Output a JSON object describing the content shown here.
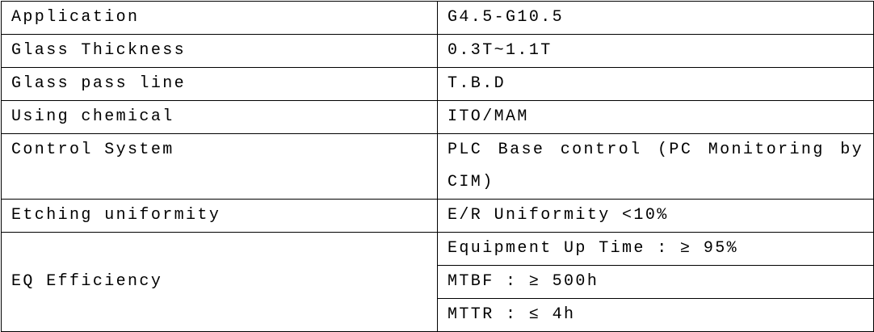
{
  "rows": [
    {
      "label": "Application",
      "value": "G4.5-G10.5"
    },
    {
      "label": "Glass Thickness",
      "value": "0.3T~1.1T"
    },
    {
      "label": "Glass pass line",
      "value": "T.B.D"
    },
    {
      "label": "Using chemical",
      "value": "ITO/MAM"
    },
    {
      "label": "Control System",
      "value": "PLC Base control (PC Monitoring by CIM)"
    },
    {
      "label": "Etching uniformity",
      "value": "E/R Uniformity <10%"
    }
  ],
  "efficiency": {
    "label": "EQ Efficiency",
    "values": [
      "Equipment Up Time : ≥ 95%",
      "MTBF : ≥ 500h",
      "MTTR : ≤ 4h"
    ]
  }
}
